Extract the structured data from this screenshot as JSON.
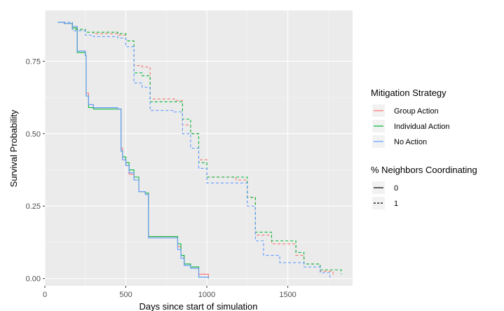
{
  "chart_data": {
    "type": "line",
    "xlabel": "Days since start of simulation",
    "ylabel": "Survival Probability",
    "xlim": [
      0,
      1900
    ],
    "ylim": [
      -0.025,
      0.925
    ],
    "x_ticks": [
      0,
      500,
      1000,
      1500
    ],
    "x_tick_labels": [
      "0",
      "500",
      "1000",
      "1500"
    ],
    "y_ticks": [
      0.0,
      0.25,
      0.5,
      0.75
    ],
    "y_tick_labels": [
      "0.00",
      "0.25",
      "0.50",
      "0.75"
    ],
    "grid": true,
    "background": "#ebebeb",
    "legend_position": "right",
    "legends": [
      {
        "title": "Mitigation Strategy",
        "entries": [
          {
            "label": "Group Action",
            "color": "#F8766D"
          },
          {
            "label": "Individual Action",
            "color": "#00BA38"
          },
          {
            "label": "No Action",
            "color": "#619CFF"
          }
        ]
      },
      {
        "title": "% Neighbors Coordinating",
        "entries": [
          {
            "label": "0",
            "linetype": "solid"
          },
          {
            "label": "1",
            "linetype": "dashed"
          }
        ]
      }
    ],
    "series": [
      {
        "strategy": "Group Action",
        "coordinating": "0",
        "color": "#F8766D",
        "linetype": "solid",
        "x": [
          80,
          120,
          170,
          200,
          250,
          255,
          270,
          300,
          380,
          450,
          470,
          480,
          500,
          520,
          550,
          580,
          620,
          640,
          800,
          820,
          840,
          860,
          900,
          950,
          1010
        ],
        "y": [
          0.885,
          0.88,
          0.865,
          0.785,
          0.77,
          0.64,
          0.6,
          0.59,
          0.59,
          0.585,
          0.45,
          0.41,
          0.39,
          0.36,
          0.34,
          0.3,
          0.295,
          0.145,
          0.145,
          0.11,
          0.08,
          0.05,
          0.04,
          0.015,
          0.0
        ]
      },
      {
        "strategy": "Individual Action",
        "coordinating": "0",
        "color": "#00BA38",
        "linetype": "solid",
        "x": [
          80,
          120,
          170,
          200,
          250,
          255,
          270,
          300,
          380,
          450,
          470,
          480,
          500,
          520,
          550,
          580,
          620,
          640,
          800,
          820,
          840,
          860,
          900,
          950,
          1010
        ],
        "y": [
          0.885,
          0.88,
          0.865,
          0.78,
          0.77,
          0.63,
          0.59,
          0.585,
          0.585,
          0.585,
          0.44,
          0.42,
          0.4,
          0.375,
          0.35,
          0.3,
          0.295,
          0.145,
          0.145,
          0.12,
          0.08,
          0.05,
          0.04,
          0.005,
          0.0
        ]
      },
      {
        "strategy": "No Action",
        "coordinating": "0",
        "color": "#619CFF",
        "linetype": "solid",
        "x": [
          80,
          120,
          170,
          200,
          250,
          255,
          270,
          300,
          380,
          450,
          470,
          480,
          500,
          520,
          550,
          580,
          620,
          640,
          800,
          820,
          840,
          860,
          900,
          950,
          1010
        ],
        "y": [
          0.885,
          0.88,
          0.87,
          0.785,
          0.77,
          0.63,
          0.6,
          0.59,
          0.59,
          0.585,
          0.44,
          0.41,
          0.39,
          0.365,
          0.34,
          0.3,
          0.29,
          0.14,
          0.14,
          0.1,
          0.07,
          0.045,
          0.035,
          0.005,
          0.0
        ]
      },
      {
        "strategy": "Group Action",
        "coordinating": "1",
        "color": "#F8766D",
        "linetype": "dashed",
        "x": [
          80,
          170,
          250,
          300,
          450,
          500,
          550,
          600,
          650,
          800,
          850,
          900,
          950,
          1000,
          1180,
          1250,
          1300,
          1400,
          1550,
          1600,
          1700,
          1780
        ],
        "y": [
          0.885,
          0.86,
          0.85,
          0.845,
          0.84,
          0.82,
          0.735,
          0.73,
          0.62,
          0.615,
          0.53,
          0.5,
          0.41,
          0.35,
          0.34,
          0.28,
          0.15,
          0.12,
          0.08,
          0.05,
          0.025,
          0.01
        ]
      },
      {
        "strategy": "Individual Action",
        "coordinating": "1",
        "color": "#00BA38",
        "linetype": "dashed",
        "x": [
          80,
          170,
          250,
          300,
          450,
          500,
          550,
          600,
          650,
          800,
          850,
          900,
          950,
          1000,
          1180,
          1250,
          1300,
          1400,
          1550,
          1600,
          1700,
          1830
        ],
        "y": [
          0.885,
          0.86,
          0.85,
          0.85,
          0.845,
          0.82,
          0.71,
          0.7,
          0.61,
          0.61,
          0.55,
          0.5,
          0.4,
          0.35,
          0.35,
          0.28,
          0.16,
          0.13,
          0.09,
          0.05,
          0.03,
          0.015
        ]
      },
      {
        "strategy": "No Action",
        "coordinating": "1",
        "color": "#619CFF",
        "linetype": "dashed",
        "x": [
          80,
          170,
          250,
          300,
          450,
          500,
          550,
          600,
          650,
          800,
          850,
          900,
          950,
          1000,
          1180,
          1250,
          1300,
          1350,
          1450,
          1600,
          1700,
          1760
        ],
        "y": [
          0.885,
          0.855,
          0.84,
          0.835,
          0.83,
          0.8,
          0.675,
          0.66,
          0.58,
          0.575,
          0.5,
          0.45,
          0.38,
          0.33,
          0.33,
          0.25,
          0.13,
          0.08,
          0.055,
          0.04,
          0.02,
          0.0
        ]
      }
    ]
  }
}
